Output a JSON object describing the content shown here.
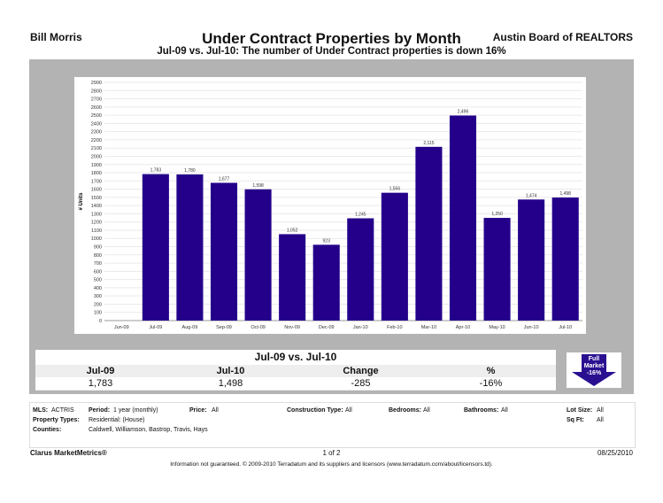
{
  "header": {
    "agent": "Bill Morris",
    "board": "Austin Board of REALTORS",
    "title": "Under Contract Properties by Month",
    "subtitle": "Jul-09 vs. Jul-10: The number of Under Contract properties is down 16%"
  },
  "chart_data": {
    "type": "bar",
    "title": "",
    "ylabel": "# Units",
    "xlabel": "",
    "ylim": [
      0,
      2900
    ],
    "ytick_step": 100,
    "grid": true,
    "categories": [
      "Jun-09",
      "Jul-09",
      "Aug-09",
      "Sep-09",
      "Oct-09",
      "Nov-09",
      "Dec-09",
      "Jan-10",
      "Feb-10",
      "Mar-10",
      "Apr-10",
      "May-10",
      "Jun-10",
      "Jul-10"
    ],
    "values": [
      null,
      1783,
      1780,
      1677,
      1598,
      1052,
      923,
      1245,
      1556,
      2115,
      2496,
      1250,
      1474,
      1498
    ],
    "labels": [
      "",
      "1,783",
      "1,780",
      "1,677",
      "1,598",
      "1,052",
      "923",
      "1,245",
      "1,556",
      "2,115",
      "2,496",
      "1,250",
      "1,474",
      "1,498"
    ],
    "bar_color": "#24008a"
  },
  "summary": {
    "title": "Jul-09 vs. Jul-10",
    "headers": [
      "Jul-09",
      "Jul-10",
      "Change",
      "%"
    ],
    "values": [
      "1,783",
      "1,498",
      "-285",
      "-16%"
    ]
  },
  "badge": {
    "line1": "Full",
    "line2": "Market",
    "line3": "-16%",
    "color": "#2a1090",
    "direction": "down"
  },
  "info": {
    "mls_label": "MLS:",
    "mls": "ACTRIS",
    "period_label": "Period:",
    "period": "1 year (monthly)",
    "price_label": "Price:",
    "price": "All",
    "construction_label": "Construction Type:",
    "construction": "All",
    "bedrooms_label": "Bedrooms:",
    "bedrooms": "All",
    "bathrooms_label": "Bathrooms:",
    "bathrooms": "All",
    "lot_label": "Lot Size:",
    "lot": "All",
    "ptype_label": "Property Types:",
    "ptype": "Residential: (House)",
    "sqft_label": "Sq Ft:",
    "sqft": "All",
    "counties_label": "Counties:",
    "counties": "Caldwell, Williamson, Bastrop, Travis, Hays"
  },
  "footer": {
    "brand": "Clarus MarketMetrics®",
    "page": "1 of 2",
    "date": "08/25/2010",
    "disclaimer": "Information not guaranteed. © 2009-2010 Terradatum and its suppliers and licensors (www.terradatum.com/about/licensors.td)."
  }
}
